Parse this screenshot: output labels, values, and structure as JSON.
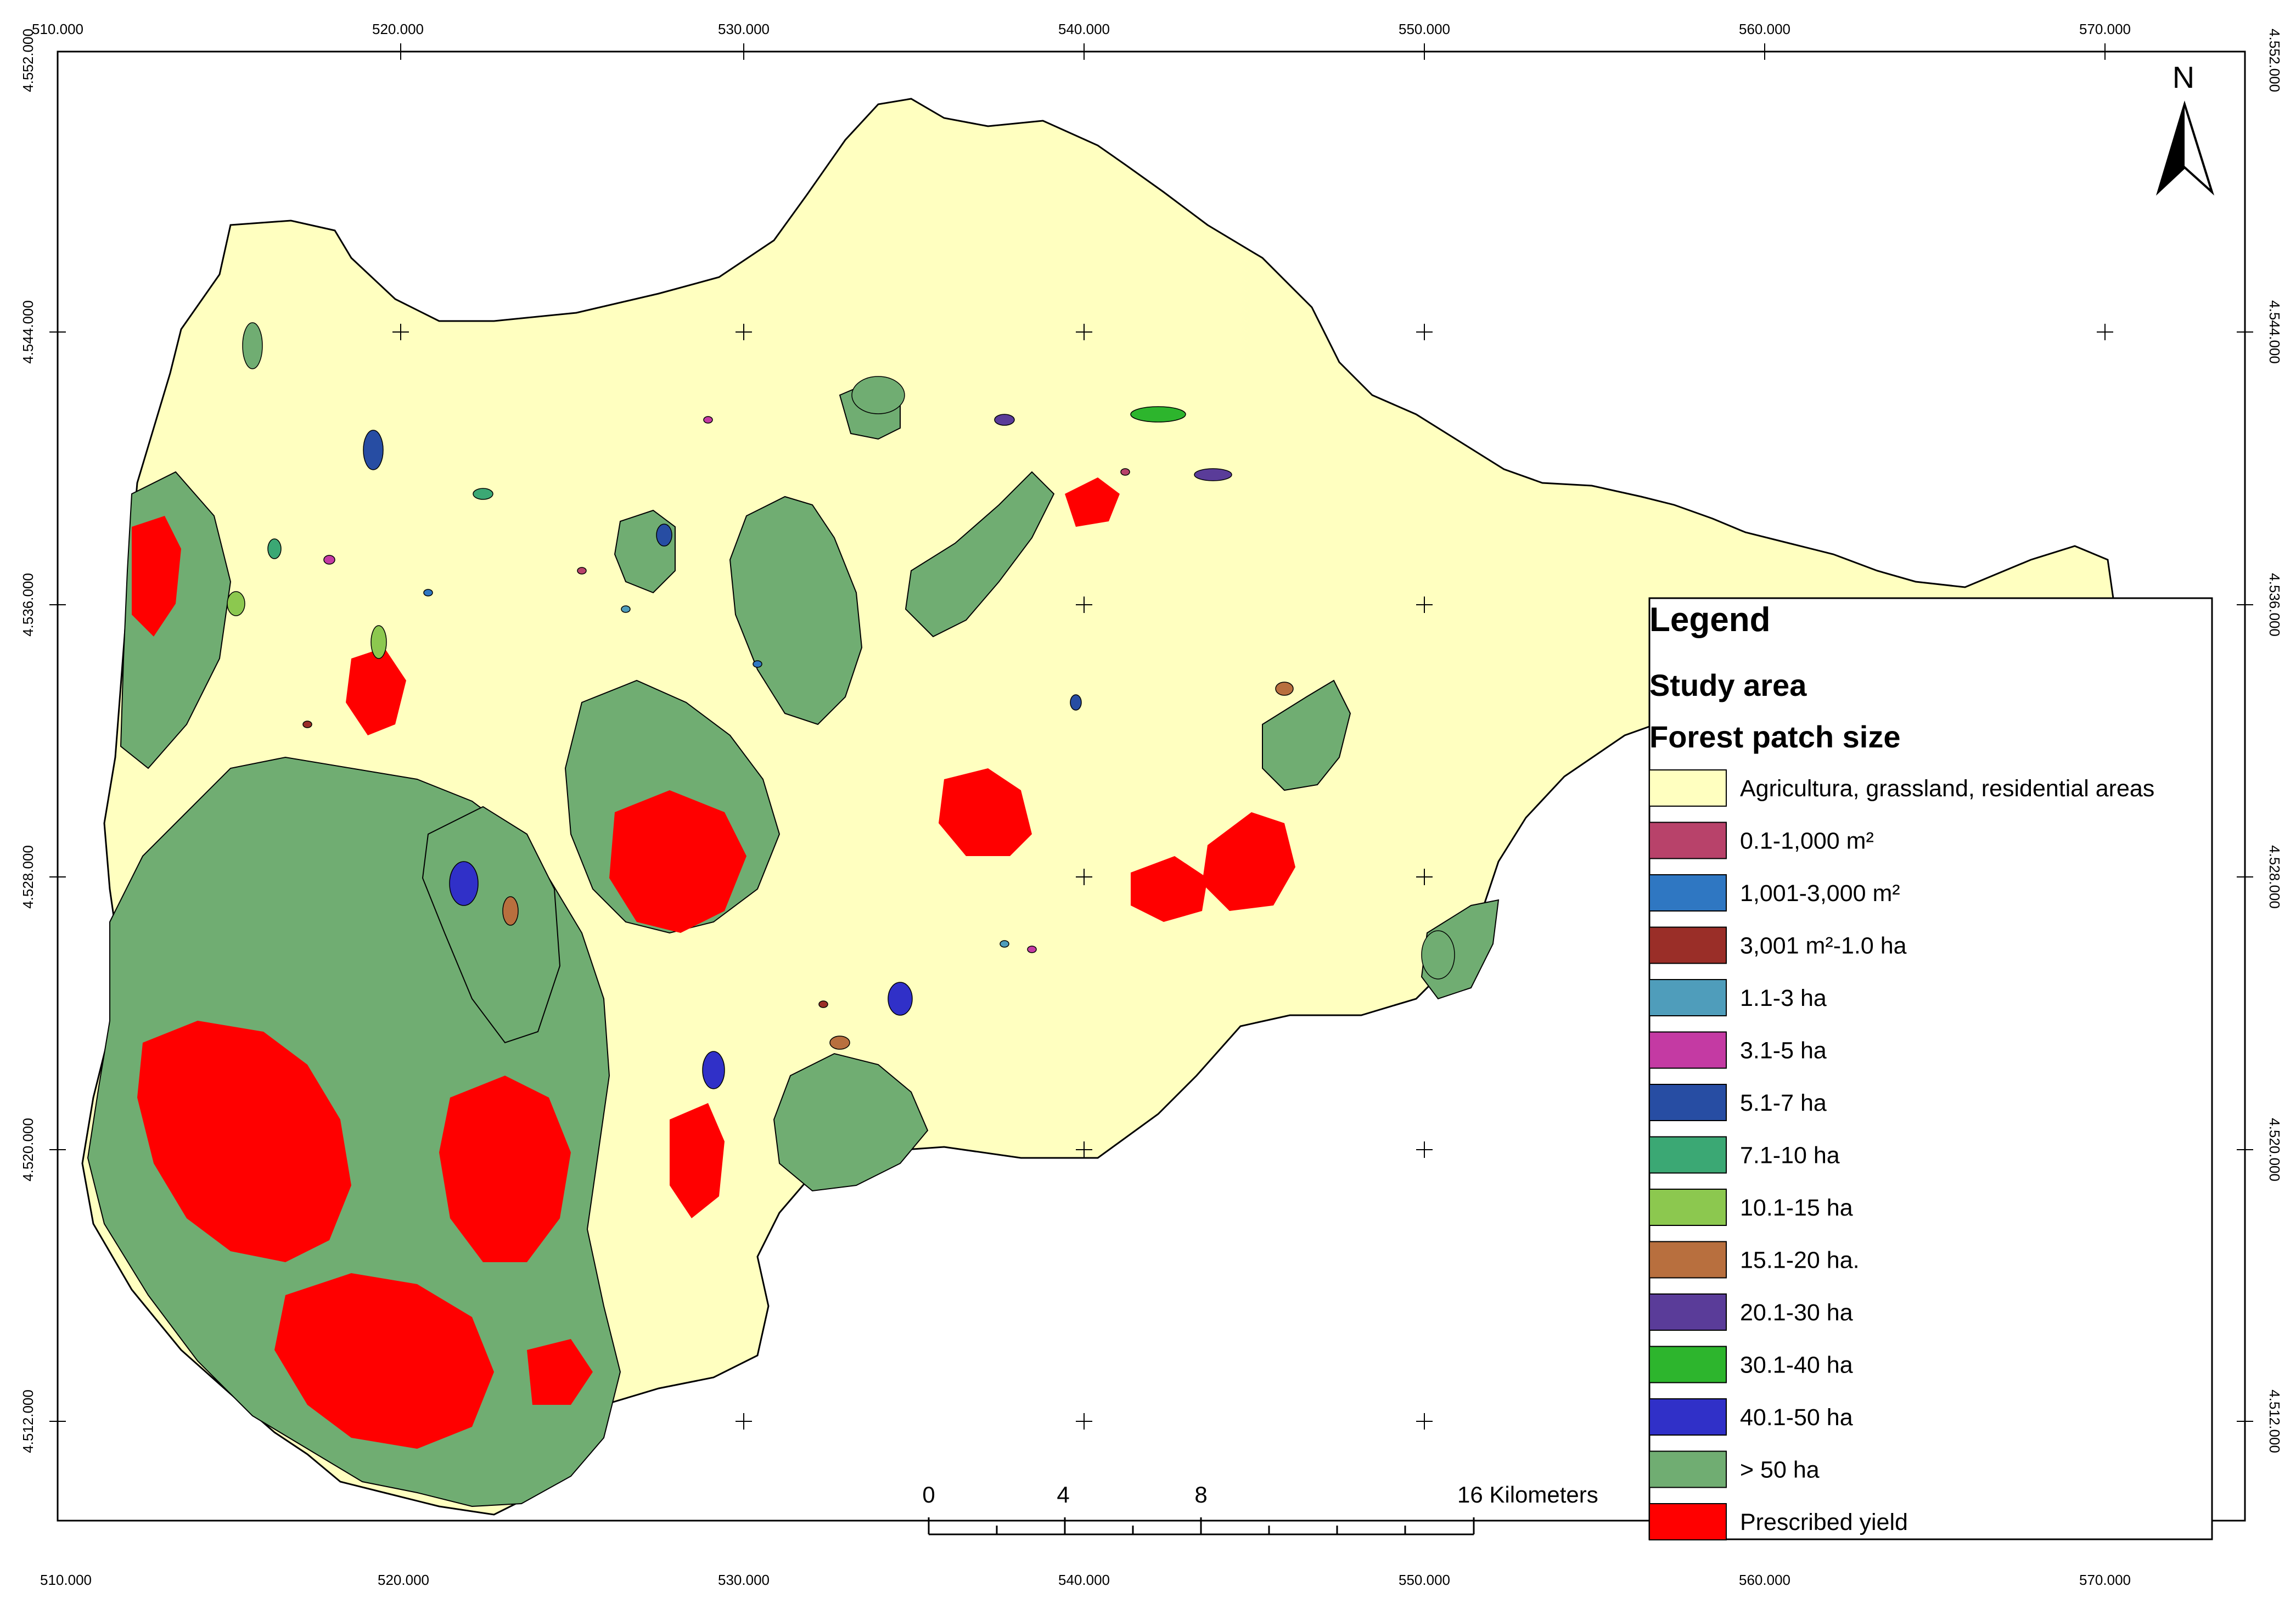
{
  "map": {
    "x_ticks": [
      "510.000",
      "520.000",
      "530.000",
      "540.000",
      "550.000",
      "560.000",
      "570.000"
    ],
    "y_ticks": [
      "4.552.000",
      "4.544.000",
      "4.536.000",
      "4.528.000",
      "4.520.000",
      "4.512.000"
    ],
    "colors": {
      "study_area": "#ffffc0",
      "forest_large": "#70ad72",
      "prescribed": "#ff0000",
      "outline": "#000000"
    }
  },
  "north_arrow": {
    "letter": "N"
  },
  "legend": {
    "title": "Legend",
    "study_area_label": "Study area",
    "forest_label": "Forest patch size",
    "items": [
      {
        "label": "Agricultura, grassland, residential areas",
        "color": "#ffffc0"
      },
      {
        "label": "0.1-1,000 m²",
        "color": "#b8426a"
      },
      {
        "label": "1,001-3,000 m²",
        "color": "#2f77c2"
      },
      {
        "label": "3,001 m²-1.0 ha",
        "color": "#9a2e28"
      },
      {
        "label": "1.1-3 ha",
        "color": "#4f9dbb"
      },
      {
        "label": "3.1-5 ha",
        "color": "#c43aa3"
      },
      {
        "label": "5.1-7 ha",
        "color": "#274da3"
      },
      {
        "label": "7.1-10 ha",
        "color": "#3ba874"
      },
      {
        "label": "10.1-15 ha",
        "color": "#8cc84f"
      },
      {
        "label": "15.1-20 ha.",
        "color": "#b86f3e"
      },
      {
        "label": "20.1-30 ha",
        "color": "#5a3c99"
      },
      {
        "label": "30.1-40 ha",
        "color": "#2db52d"
      },
      {
        "label": "40.1-50 ha",
        "color": "#3030c8"
      },
      {
        "label": "> 50 ha",
        "color": "#70ad72"
      },
      {
        "label": "Prescribed yield",
        "color": "#ff0000"
      }
    ]
  },
  "scale_bar": {
    "labels": [
      "0",
      "4",
      "8",
      "16 Kilometers"
    ]
  }
}
